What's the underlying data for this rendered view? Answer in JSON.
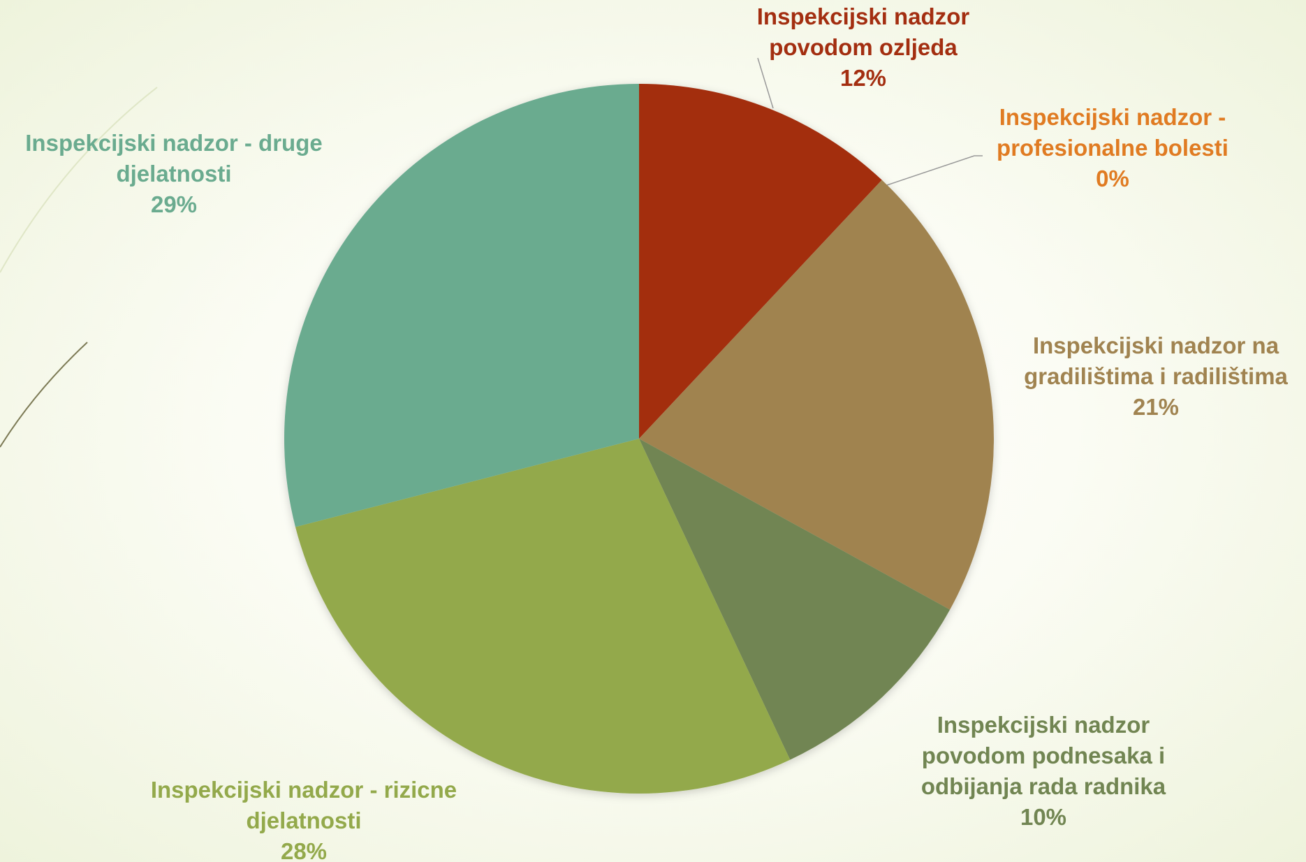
{
  "chart_data": {
    "type": "pie",
    "categories": [
      "Inspekcijski nadzor povodom ozljeda",
      "Inspekcijski nadzor - profesionalne bolesti",
      "Inspekcijski nadzor na gradilištima i radilištima",
      "Inspekcijski nadzor povodom podnesaka i odbijanja rada radnika",
      "Inspekcijski nadzor - rizicne djelatnosti",
      "Inspekcijski nadzor - druge djelatnosti"
    ],
    "values": [
      12,
      0,
      21,
      10,
      28,
      29
    ],
    "value_labels": [
      "12%",
      "0%",
      "21%",
      "10%",
      "28%",
      "29%"
    ],
    "colors": [
      "#a32e10",
      "#e07b22",
      "#a08350",
      "#718552",
      "#93a94b",
      "#6aab8f"
    ]
  }
}
